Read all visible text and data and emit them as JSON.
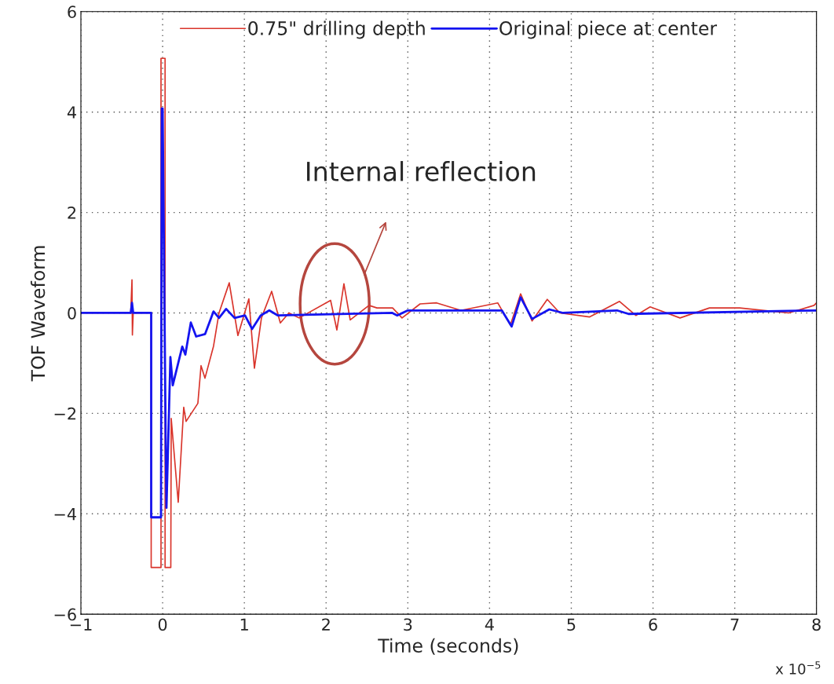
{
  "chart_data": {
    "type": "line",
    "xlabel": "Time (seconds)",
    "ylabel": "TOF Waveform",
    "annotations": [
      "Internal reflection",
      "x 10$^{−5}$"
    ],
    "xlim": [
      -1,
      8
    ],
    "ylim": [
      -6,
      6
    ],
    "xticks": [
      -1,
      0,
      1,
      2,
      3,
      4,
      5,
      6,
      7,
      8
    ],
    "yticks": [
      -6,
      -4,
      -2,
      0,
      2,
      4,
      6
    ],
    "grid": true,
    "legend": "top",
    "line_style": "solid",
    "series": [
      {
        "name": "0.75\" drilling depth",
        "color": "#d9342b",
        "x": [
          -1,
          -0.39,
          -0.375,
          -0.37,
          -0.36,
          -0.14,
          -0.14,
          -0.02,
          -0.02,
          0.03,
          0.03,
          0.1,
          0.105,
          0.191,
          0.258,
          0.287,
          0.431,
          0.47,
          0.518,
          0.623,
          0.69,
          0.815,
          0.921,
          1.055,
          1.123,
          1.209,
          1.334,
          1.44,
          1.545,
          1.67,
          2.055,
          2.132,
          2.218,
          2.295,
          2.525,
          2.622,
          2.814,
          2.929,
          3.15,
          3.352,
          3.65,
          4.1,
          4.255,
          4.38,
          4.52,
          4.706,
          4.86,
          5.225,
          5.59,
          5.79,
          5.965,
          6.33,
          6.69,
          7.06,
          7.66,
          7.97,
          8
        ],
        "values": [
          0,
          0,
          0.66,
          -0.44,
          0,
          0,
          -5.07,
          -5.07,
          5.07,
          5.07,
          -5.07,
          -5.07,
          -2.1,
          -3.77,
          -1.88,
          -2.16,
          -1.8,
          -1.05,
          -1.3,
          -0.66,
          0,
          0.6,
          -0.45,
          0.28,
          -1.1,
          -0.1,
          0.43,
          -0.2,
          0,
          -0.1,
          0.25,
          -0.34,
          0.58,
          -0.14,
          0.15,
          0.1,
          0.1,
          -0.1,
          0.18,
          0.2,
          0.05,
          0.2,
          -0.24,
          0.38,
          -0.16,
          0.27,
          0,
          -0.08,
          0.23,
          -0.05,
          0.12,
          -0.1,
          0.1,
          0.1,
          0,
          0.15,
          0.2
        ]
      },
      {
        "name": "Original piece at center",
        "color": "#1414f0",
        "x": [
          -1,
          -0.39,
          -0.375,
          -0.36,
          -0.14,
          -0.14,
          -0.02,
          -0.01,
          0.0,
          0.04,
          0.047,
          0.095,
          0.124,
          0.24,
          0.278,
          0.345,
          0.41,
          0.52,
          0.623,
          0.69,
          0.777,
          0.88,
          1.008,
          1.094,
          1.2,
          1.305,
          1.41,
          2.81,
          2.87,
          3.0,
          4.15,
          4.27,
          4.38,
          4.52,
          4.73,
          4.9,
          5.56,
          5.7,
          8
        ],
        "values": [
          0,
          0,
          0.2,
          0,
          0,
          -4.07,
          -4.07,
          4.07,
          4.07,
          -3.0,
          -3.88,
          -0.88,
          -1.44,
          -0.67,
          -0.83,
          -0.19,
          -0.47,
          -0.42,
          0.03,
          -0.1,
          0.08,
          -0.1,
          -0.05,
          -0.32,
          -0.05,
          0.05,
          -0.05,
          0,
          -0.05,
          0.05,
          0.05,
          -0.27,
          0.31,
          -0.12,
          0.07,
          0,
          0.05,
          -0.02,
          0.05
        ]
      }
    ]
  }
}
